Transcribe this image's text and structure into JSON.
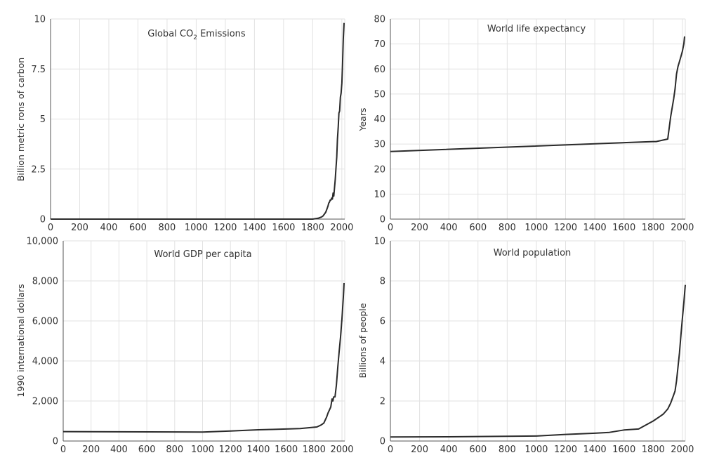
{
  "colors": {
    "line": "#2a2a2a",
    "grid": "#e2e2e2",
    "axis": "#555555",
    "text": "#333333"
  },
  "chart_data": [
    {
      "type": "line",
      "title": "Global CO",
      "title_sub": "2",
      "title_rest": " Emissions",
      "xlabel": "",
      "ylabel": "Billion metric rons of carbon",
      "xlim": [
        0,
        2020
      ],
      "ylim": [
        0,
        10
      ],
      "x_ticks": [
        0,
        200,
        400,
        600,
        800,
        1000,
        1200,
        1400,
        1600,
        1800,
        2000
      ],
      "y_ticks": [
        0,
        2.5,
        5,
        7.5,
        10
      ],
      "y_tick_labels": [
        "0",
        "2.5",
        "5",
        "7.5",
        "10"
      ],
      "grid": true,
      "series": [
        {
          "x": [
            0,
            1800,
            1840,
            1860,
            1870,
            1880,
            1890,
            1900,
            1905,
            1910,
            1915,
            1920,
            1925,
            1930,
            1935,
            1940,
            1945,
            1950,
            1955,
            1960,
            1965,
            1970,
            1975,
            1980,
            1985,
            1990,
            1995,
            2000,
            2005,
            2010,
            2015
          ],
          "y": [
            0,
            0,
            0.05,
            0.1,
            0.15,
            0.25,
            0.35,
            0.55,
            0.65,
            0.8,
            0.85,
            0.95,
            0.95,
            1.05,
            1.0,
            1.3,
            1.15,
            1.6,
            2.0,
            2.6,
            3.1,
            4.0,
            4.6,
            5.3,
            5.4,
            6.1,
            6.3,
            6.8,
            7.8,
            9.0,
            9.8
          ]
        }
      ]
    },
    {
      "type": "line",
      "title": "World life expectancy",
      "xlabel": "",
      "ylabel": "Years",
      "xlim": [
        0,
        2020
      ],
      "ylim": [
        0,
        80
      ],
      "x_ticks": [
        0,
        200,
        400,
        600,
        800,
        1000,
        1200,
        1400,
        1600,
        1800,
        2000
      ],
      "y_ticks": [
        0,
        10,
        20,
        30,
        40,
        50,
        60,
        70,
        80
      ],
      "y_tick_labels": [
        "0",
        "10",
        "20",
        "30",
        "40",
        "50",
        "60",
        "70",
        "80"
      ],
      "grid": true,
      "series": [
        {
          "x": [
            0,
            1800,
            1820,
            1900,
            1920,
            1940,
            1950,
            1960,
            1970,
            1980,
            1990,
            2000,
            2010,
            2015
          ],
          "y": [
            27,
            31,
            31,
            32,
            41,
            48,
            52,
            58,
            61,
            63,
            65,
            67,
            70,
            73
          ]
        }
      ]
    },
    {
      "type": "line",
      "title": "World GDP per capita",
      "xlabel": "",
      "ylabel": "1990 international dollars",
      "xlim": [
        0,
        2020
      ],
      "ylim": [
        0,
        10000
      ],
      "x_ticks": [
        0,
        200,
        400,
        600,
        800,
        1000,
        1200,
        1400,
        1600,
        1800,
        2000
      ],
      "y_ticks": [
        0,
        2000,
        4000,
        6000,
        8000,
        10000
      ],
      "y_tick_labels": [
        "0",
        "2,000",
        "4,000",
        "6,000",
        "8,000",
        "10,000"
      ],
      "grid": true,
      "series": [
        {
          "x": [
            0,
            1000,
            1200,
            1400,
            1500,
            1600,
            1700,
            1820,
            1850,
            1870,
            1890,
            1900,
            1913,
            1920,
            1929,
            1935,
            1940,
            1950,
            1960,
            1970,
            1980,
            1990,
            2000,
            2010,
            2015
          ],
          "y": [
            470,
            450,
            500,
            560,
            580,
            600,
            620,
            700,
            800,
            900,
            1200,
            1400,
            1600,
            1700,
            2100,
            2000,
            2200,
            2200,
            2800,
            3700,
            4500,
            5200,
            6100,
            7200,
            7900
          ]
        }
      ]
    },
    {
      "type": "line",
      "title": "World population",
      "xlabel": "",
      "ylabel": "Billions of people",
      "xlim": [
        0,
        2020
      ],
      "ylim": [
        0,
        10
      ],
      "x_ticks": [
        0,
        200,
        400,
        600,
        800,
        1000,
        1200,
        1400,
        1600,
        1800,
        2000
      ],
      "y_ticks": [
        0,
        2,
        4,
        6,
        8,
        10
      ],
      "y_tick_labels": [
        "0",
        "2",
        "4",
        "6",
        "8",
        "10"
      ],
      "grid": true,
      "series": [
        {
          "x": [
            0,
            400,
            1000,
            1200,
            1400,
            1500,
            1600,
            1700,
            1800,
            1850,
            1870,
            1900,
            1920,
            1940,
            1950,
            1960,
            1970,
            1980,
            1990,
            2000,
            2010,
            2020
          ],
          "y": [
            0.2,
            0.21,
            0.25,
            0.33,
            0.39,
            0.43,
            0.55,
            0.6,
            1.0,
            1.25,
            1.35,
            1.6,
            1.9,
            2.3,
            2.5,
            3.0,
            3.7,
            4.4,
            5.3,
            6.1,
            6.9,
            7.8
          ]
        }
      ]
    }
  ]
}
